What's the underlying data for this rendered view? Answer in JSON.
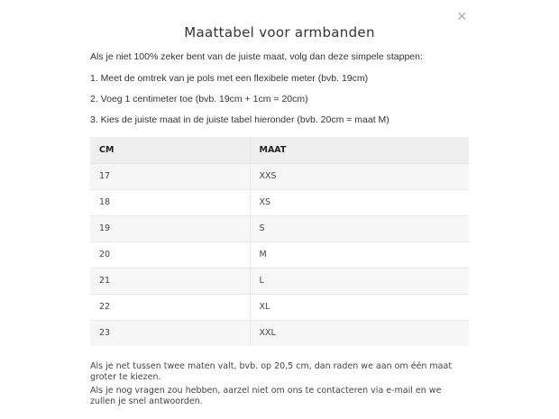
{
  "dialog": {
    "close_icon": "close-x-icon",
    "close_label": "×",
    "title": "Maattabel voor armbanden",
    "intro": "Als je niet 100% zeker bent van de juiste maat, volg dan deze simpele stappen:",
    "steps": [
      "1. Meet de omtrek van je pols met een flexibele meter (bvb. 19cm)",
      "2. Voeg 1 centimeter toe (bvb. 19cm + 1cm = 20cm)",
      "3. Kies de juiste maat in de juiste tabel hieronder (bvb. 20cm = maat M)"
    ],
    "table": {
      "headers": [
        "CM",
        "MAAT"
      ],
      "rows": [
        [
          "17",
          "XXS"
        ],
        [
          "18",
          "XS"
        ],
        [
          "19",
          "S"
        ],
        [
          "20",
          "M"
        ],
        [
          "21",
          "L"
        ],
        [
          "22",
          "XL"
        ],
        [
          "23",
          "XXL"
        ]
      ]
    },
    "notes": [
      "Als je net tussen twee maten valt, bvb. op 20,5 cm, dan raden we aan om één maat groter te kiezen.",
      "Als je nog vragen zou hebben, aarzel niet om ons te contacteren via e-mail en we zullen je snel antwoorden."
    ]
  }
}
